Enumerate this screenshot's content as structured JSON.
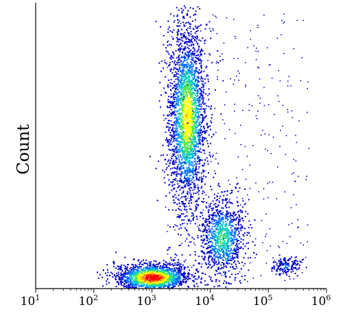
{
  "chart_data": {
    "type": "scatter",
    "subtype": "density-colored",
    "title": "",
    "xlabel": "",
    "ylabel": "Count",
    "x_scale": "log",
    "xlim": [
      10,
      1000000
    ],
    "x_tick_labels": [
      {
        "value": 10,
        "base": "10",
        "exp": "1"
      },
      {
        "value": 100,
        "base": "10",
        "exp": "2"
      },
      {
        "value": 1000,
        "base": "10",
        "exp": "3"
      },
      {
        "value": 10000,
        "base": "10",
        "exp": "4"
      },
      {
        "value": 100000,
        "base": "10",
        "exp": "5"
      },
      {
        "value": 1000000,
        "base": "10",
        "exp": "6"
      }
    ],
    "y_ticks": "none",
    "grid": false,
    "legend": "none",
    "colormap": [
      "#0000c8",
      "#0070ff",
      "#00c8c8",
      "#50e650",
      "#ffff00",
      "#ff8c00",
      "#ff0000"
    ],
    "populations": [
      {
        "label": "",
        "center_x_log10": 3.6,
        "center_y_frac": 0.6,
        "spread_x_log10": 0.16,
        "spread_y_frac": 0.16,
        "peak": 0.7
      },
      {
        "label": "",
        "center_x_log10": 3.0,
        "center_y_frac": 0.04,
        "spread_x_log10": 0.32,
        "spread_y_frac": 0.025,
        "peak": 1.0
      },
      {
        "label": "",
        "center_x_log10": 4.2,
        "center_y_frac": 0.18,
        "spread_x_log10": 0.2,
        "spread_y_frac": 0.07,
        "peak": 0.45
      },
      {
        "label": "",
        "center_x_log10": 5.3,
        "center_y_frac": 0.08,
        "spread_x_log10": 0.12,
        "spread_y_frac": 0.015,
        "peak": 0.2
      }
    ]
  }
}
